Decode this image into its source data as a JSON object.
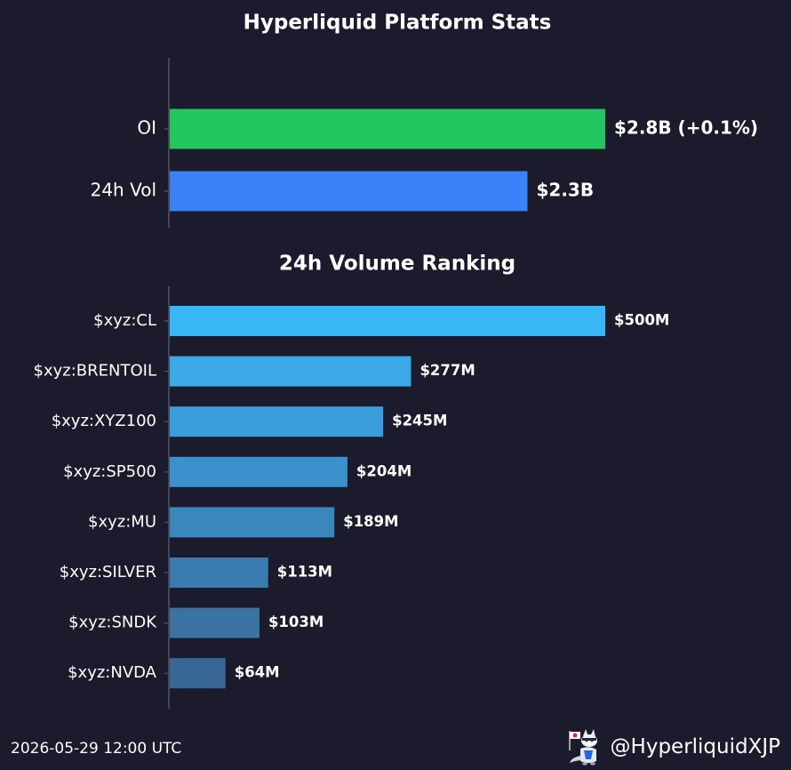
{
  "chart_data": [
    {
      "type": "bar",
      "orientation": "horizontal",
      "title": "Hyperliquid Platform Stats",
      "categories": [
        "OI",
        "24h Vol"
      ],
      "values": [
        2.8,
        2.3
      ],
      "units": "billions USD",
      "value_labels": [
        "$2.8B (+0.1%)",
        "$2.3B"
      ],
      "colors": [
        "#22c55e",
        "#3b82f6"
      ],
      "grid": false,
      "legend": "none"
    },
    {
      "type": "bar",
      "orientation": "horizontal",
      "title": "24h Volume Ranking",
      "categories": [
        "$xyz:CL",
        "$xyz:BRENTOIL",
        "$xyz:XYZ100",
        "$xyz:SP500",
        "$xyz:MU",
        "$xyz:SILVER",
        "$xyz:SNDK",
        "$xyz:NVDA"
      ],
      "values": [
        500,
        277,
        245,
        204,
        189,
        113,
        103,
        64
      ],
      "units": "millions USD",
      "value_labels": [
        "$500M",
        "$277M",
        "$245M",
        "$204M",
        "$189M",
        "$113M",
        "$103M",
        "$64M"
      ],
      "colors": [
        "#38b6f5",
        "#3ba8e7",
        "#3b9dd9",
        "#3a91cb",
        "#3a87bd",
        "#3a7caf",
        "#3a72a1",
        "#396793"
      ],
      "grid": false,
      "legend": "none"
    }
  ],
  "footer": {
    "timestamp": "2026-05-29 12:00 UTC",
    "handle": "@HyperliquidXJP",
    "logo_icon": "mascot-with-flag-icon"
  },
  "colors": {
    "background": "#1b1b2d",
    "axis": "#555566",
    "text": "#ffffff"
  }
}
